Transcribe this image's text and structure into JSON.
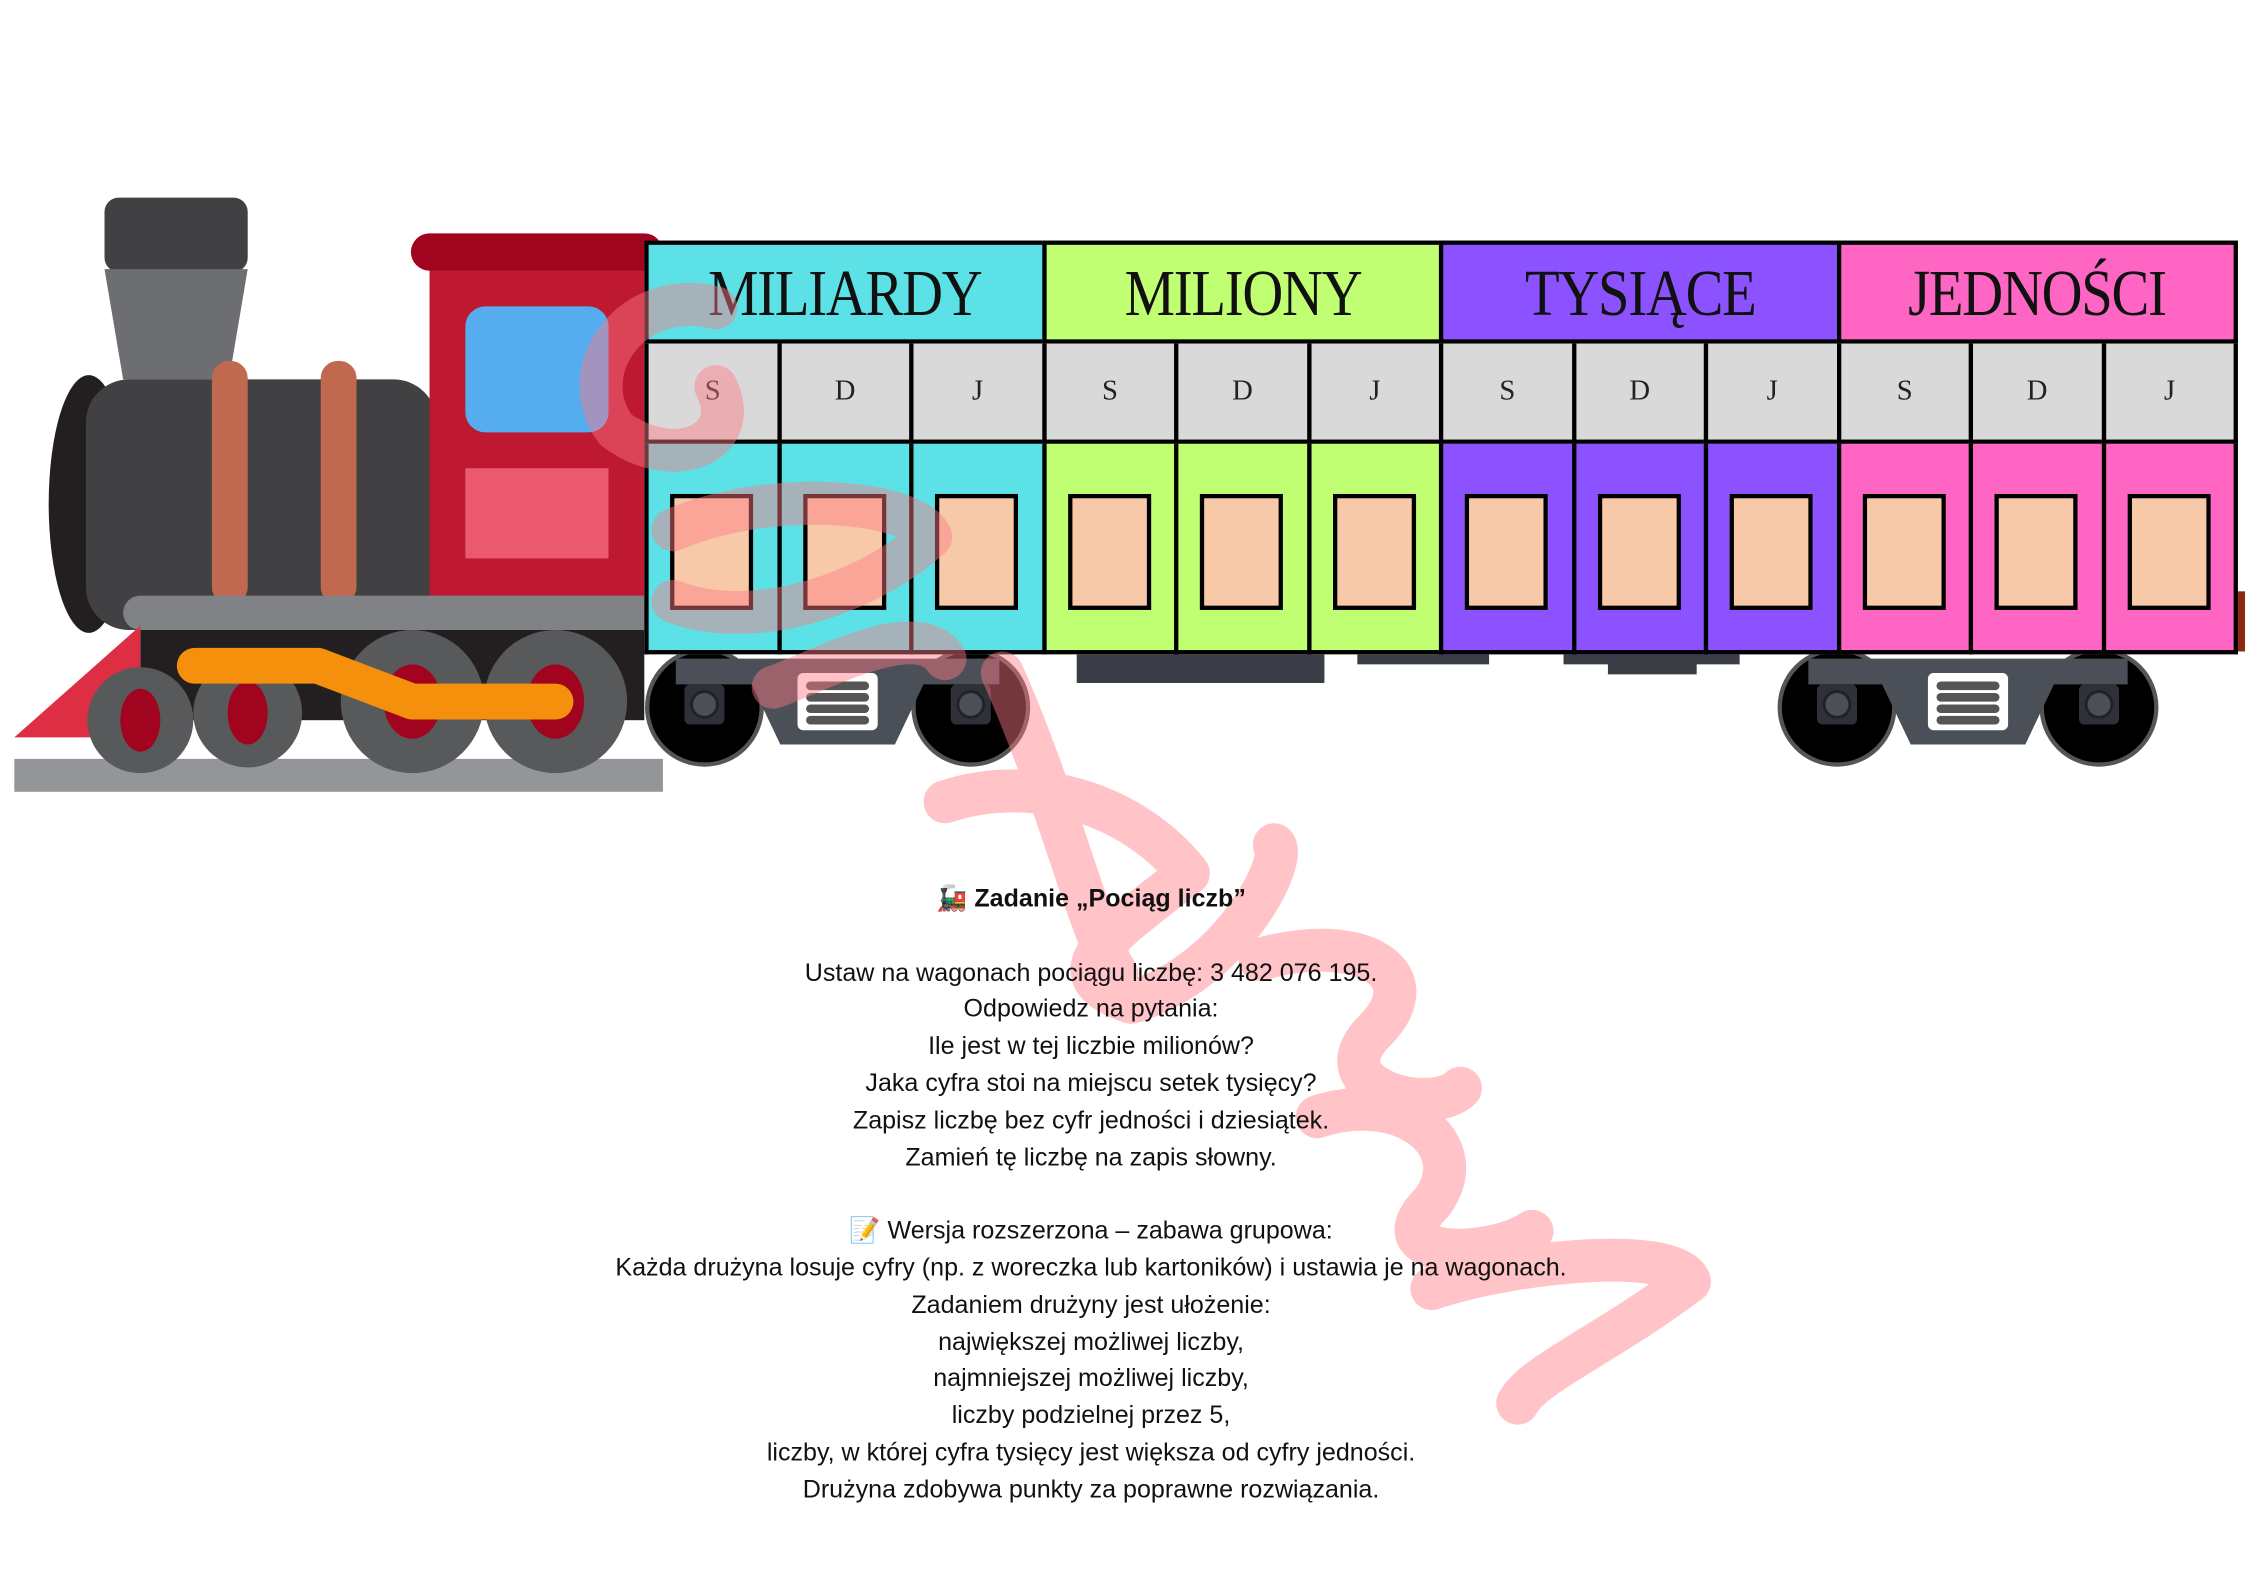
{
  "colors": {
    "miliardy": "#5ce1e6",
    "miliony": "#c1ff72",
    "tysiace": "#8c52ff",
    "jednosci": "#ff66c4",
    "subrow": "#d9d9d9",
    "slot": "#f7c9a9"
  },
  "cars": [
    {
      "label": "MILIARDY",
      "sub": [
        "S",
        "D",
        "J"
      ]
    },
    {
      "label": "MILIONY",
      "sub": [
        "S",
        "D",
        "J"
      ]
    },
    {
      "label": "TYSIĄCE",
      "sub": [
        "S",
        "D",
        "J"
      ]
    },
    {
      "label": "JEDNOŚCI",
      "sub": [
        "S",
        "D",
        "J"
      ]
    }
  ],
  "task": {
    "title_icon": "🚂",
    "title": "Zadanie „Pociąg liczb”",
    "lines": [
      "Ustaw na wagonach pociągu liczbę: 3 482 076 195.",
      "Odpowiedz na pytania:",
      "Ile jest w tej liczbie milionów?",
      "Jaka cyfra stoi na miejscu setek tysięcy?",
      "Zapisz liczbę bez cyfr jedności i dziesiątek.",
      "Zamień tę liczbę na zapis słowny."
    ],
    "extended_icon": "📝",
    "extended_title": "Wersja rozszerzona – zabawa grupowa:",
    "extended_lines": [
      "Każda drużyna losuje cyfry (np. z woreczka lub kartoników) i ustawia je na wagonach.",
      "Zadaniem drużyny jest ułożenie:",
      "największej możliwej liczby,",
      "najmniejszej możliwej liczby,",
      "liczby podzielnej przez 5,",
      "liczby, w której cyfra tysięcy jest większa od cyfry jedności.",
      "Drużyna zdobywa punkty za poprawne rozwiązania."
    ]
  }
}
